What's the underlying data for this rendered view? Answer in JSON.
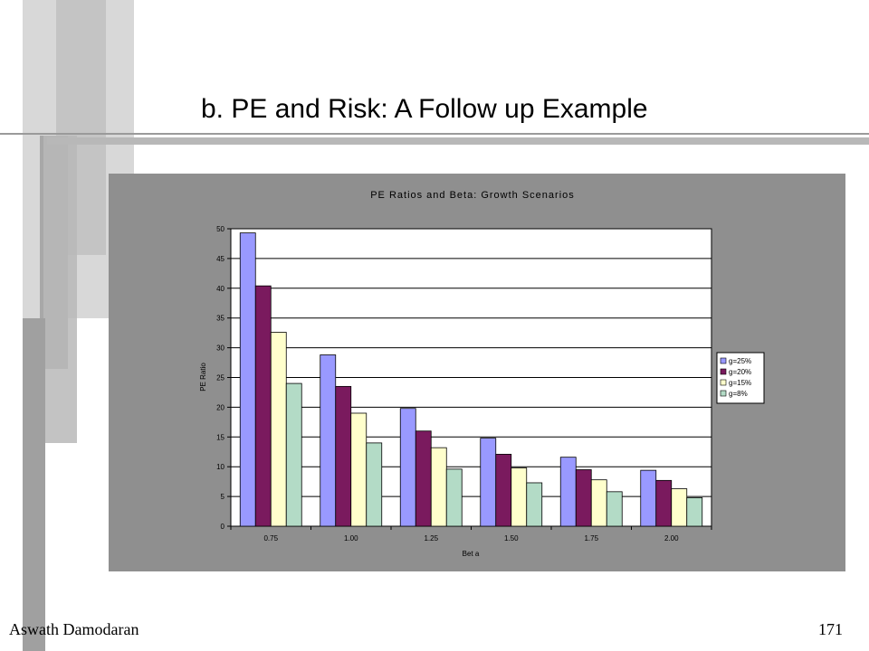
{
  "slide": {
    "title": "b. PE and Risk: A Follow up Example",
    "footer_left": "Aswath Damodaran",
    "footer_right": "171"
  },
  "colors": {
    "panel": "#8f8f8f",
    "series": [
      "#9999ff",
      "#7a1a5e",
      "#ffffcc",
      "#b3dbc6"
    ]
  },
  "chart_data": {
    "type": "bar",
    "title": "PE Ratios and Beta: Growth Scenarios",
    "xlabel": "Bet a",
    "ylabel": "PE Ratio",
    "categories": [
      "0.75",
      "1.00",
      "1.25",
      "1.50",
      "1.75",
      "2.00"
    ],
    "ylim": [
      0,
      50
    ],
    "yticks": [
      0,
      5,
      10,
      15,
      20,
      25,
      30,
      35,
      40,
      45,
      50
    ],
    "grid": true,
    "legend_position": "right",
    "series": [
      {
        "name": "g=25%",
        "values": [
          49.3,
          28.8,
          19.8,
          14.8,
          11.6,
          9.4
        ]
      },
      {
        "name": "g=20%",
        "values": [
          40.4,
          23.5,
          16.0,
          12.1,
          9.5,
          7.7
        ]
      },
      {
        "name": "g=15%",
        "values": [
          32.6,
          19.0,
          13.2,
          9.8,
          7.8,
          6.3
        ]
      },
      {
        "name": "g=8%",
        "values": [
          24.0,
          14.0,
          9.6,
          7.3,
          5.8,
          4.8
        ]
      }
    ]
  }
}
